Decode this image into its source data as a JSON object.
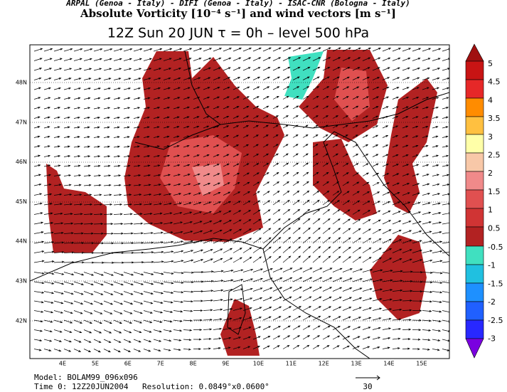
{
  "header": {
    "institutions": "ARPAL (Genoa - Italy)  -  DIFI (Genoa - Italy)  -  ISAC-CNR (Bologna - Italy)",
    "title": "Absolute Vorticity [10⁻⁴ s⁻¹] and wind vectors [m s⁻¹]",
    "subtitle": "12Z Sun 20 JUN  τ = 0h  –  level 500 hPa"
  },
  "map": {
    "lat_labels": [
      "48N",
      "47N",
      "46N",
      "45N",
      "44N",
      "43N",
      "42N"
    ],
    "lon_labels": [
      "4E",
      "5E",
      "6E",
      "7E",
      "8E",
      "9E",
      "10E",
      "11E",
      "12E",
      "13E",
      "14E",
      "15E"
    ]
  },
  "colorbar": {
    "labels": [
      5,
      4.5,
      4,
      3.5,
      3,
      2.5,
      2,
      1.5,
      1,
      0.5,
      -0.5,
      -1,
      -1.5,
      -2,
      -2.5,
      -3
    ]
  },
  "footer": {
    "model": "Model: BOLAM99_096x096",
    "time": "Time 0: 12Z20JUN2004",
    "resolution": "Resolution: 0.0849°x0.0600°",
    "reference_vector": "30"
  }
}
